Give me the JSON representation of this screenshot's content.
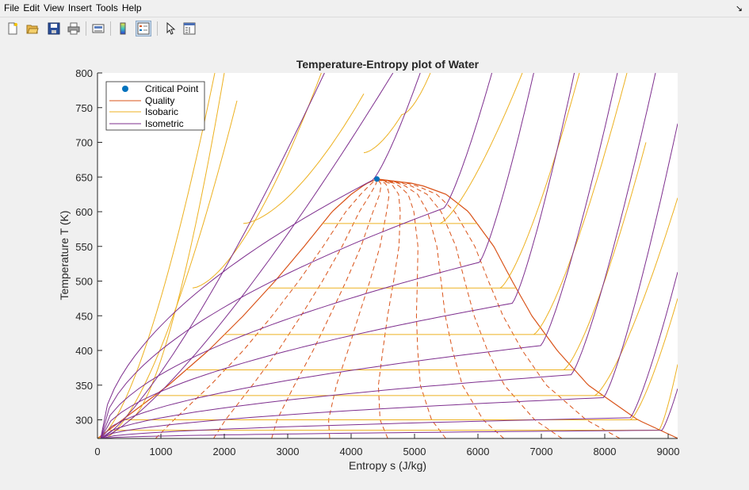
{
  "menubar": {
    "items": [
      "File",
      "Edit",
      "View",
      "Insert",
      "Tools",
      "Help"
    ]
  },
  "toolbar": {
    "buttons": [
      "new-figure-icon",
      "open-file-icon",
      "save-icon",
      "print-icon",
      "link-plot-icon",
      "colorbar-icon",
      "legend-icon",
      "pointer-icon",
      "property-inspector-icon"
    ]
  },
  "colors": {
    "quality": "#D95319",
    "isobaric": "#EDB120",
    "isometric": "#7E2F8E",
    "critical_point": "#0072BD"
  },
  "chart_data": {
    "type": "line",
    "title": "Temperature-Entropy plot of Water",
    "xlabel": "Entropy s (J/kg)",
    "ylabel": "Temperature T (K)",
    "xlim": [
      0,
      9150
    ],
    "ylim": [
      273.15,
      800
    ],
    "xticks": [
      0,
      1000,
      2000,
      3000,
      4000,
      5000,
      6000,
      7000,
      8000,
      9000
    ],
    "yticks": [
      300,
      350,
      400,
      450,
      500,
      550,
      600,
      650,
      700,
      750,
      800
    ],
    "legend_position": "top-left",
    "legend": [
      "Critical Point",
      "Quality",
      "Isobaric",
      "Isometric"
    ],
    "critical_point": {
      "s": 4407,
      "T": 647.1
    },
    "saturation_dome": {
      "T": [
        273.15,
        300,
        350,
        400,
        450,
        500,
        550,
        600,
        625,
        640,
        647.1
      ],
      "s_liquid": [
        0,
        393,
        1120,
        1750,
        2300,
        2800,
        3260,
        3700,
        4000,
        4230,
        4407
      ],
      "s_vapor": [
        9156,
        8520,
        7740,
        7250,
        6850,
        6540,
        6250,
        5850,
        5500,
        5050,
        4407
      ]
    },
    "quality_lines": [
      0.1,
      0.2,
      0.3,
      0.4,
      0.5,
      0.6,
      0.7,
      0.8,
      0.9
    ],
    "isobar_saturation_temperatures": [
      285,
      300,
      335,
      372,
      423,
      490,
      583
    ],
    "isobar_liquid_branches": [
      {
        "s": [
          500,
          2000
        ],
        "T": [
          300,
          800
        ]
      },
      {
        "s": [
          1500,
          3530
        ],
        "T": [
          490,
          800
        ]
      },
      {
        "s": [
          2300,
          4200
        ],
        "T": [
          583,
          770
        ]
      },
      {
        "s": [
          4200,
          4800,
          5250
        ],
        "T": [
          685,
          740,
          800
        ]
      }
    ],
    "isobar_vapor_branches": [
      {
        "s_start": 5400,
        "T_start": 583,
        "s_end": 6700,
        "T_end": 800
      },
      {
        "s_start": 6350,
        "T_start": 490,
        "s_end": 7600,
        "T_end": 800
      },
      {
        "s_start": 6880,
        "T_start": 423,
        "s_end": 8350,
        "T_end": 800
      },
      {
        "s_start": 7350,
        "T_start": 372,
        "s_end": 8650,
        "T_end": 700
      },
      {
        "s_start": 7840,
        "T_start": 335,
        "s_end": 9150,
        "T_end": 620
      },
      {
        "s_start": 8400,
        "T_start": 300,
        "s_end": 9150,
        "T_end": 475
      },
      {
        "s_start": 8850,
        "T_start": 285,
        "s_end": 9150,
        "T_end": 380
      }
    ],
    "isometric_dome_points": [
      {
        "s_dome": 4330,
        "T_dome": 645,
        "s_top": 5090,
        "T_top": 800
      },
      {
        "s_dome": 5460,
        "T_dome": 605,
        "s_top": 6220,
        "T_top": 800
      },
      {
        "s_dome": 6020,
        "T_dome": 527,
        "s_top": 6880,
        "T_top": 800
      },
      {
        "s_dome": 6540,
        "T_dome": 468,
        "s_top": 7520,
        "T_top": 800
      },
      {
        "s_dome": 6990,
        "T_dome": 407,
        "s_top": 8200,
        "T_top": 800
      },
      {
        "s_dome": 7470,
        "T_dome": 365,
        "s_top": 8800,
        "T_top": 800
      },
      {
        "s_dome": 7980,
        "T_dome": 332,
        "s_top": 9150,
        "T_top": 727
      },
      {
        "s_dome": 8400,
        "T_dome": 303,
        "s_top": 9150,
        "T_top": 513
      },
      {
        "s_dome": 8900,
        "T_dome": 285,
        "s_top": 9150,
        "T_top": 345
      }
    ],
    "isometric_liquid_branches": [
      {
        "s_top": 3580,
        "T_top": 800
      },
      {
        "s_top": 4660,
        "T_top": 800
      }
    ]
  }
}
